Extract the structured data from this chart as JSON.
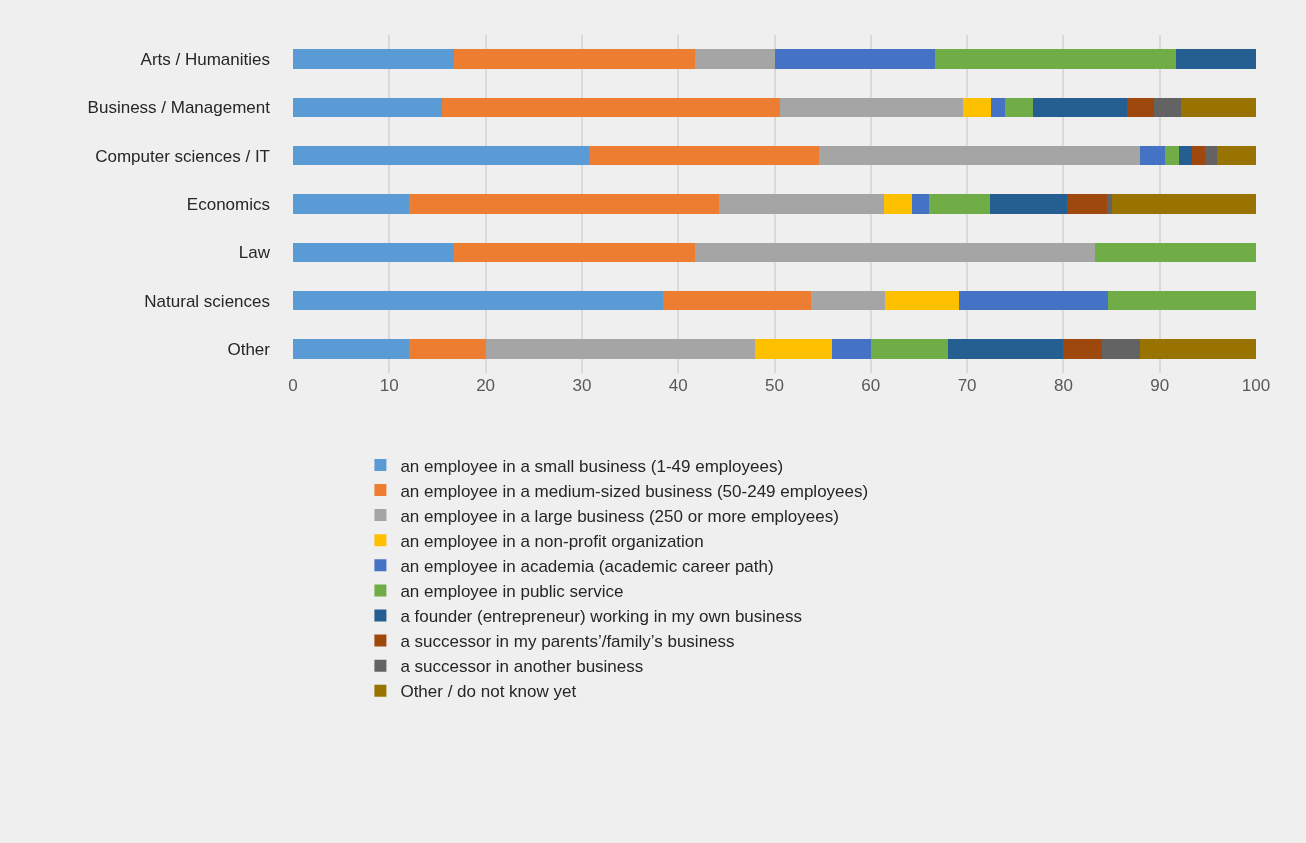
{
  "chart_data": {
    "type": "bar",
    "orientation": "horizontal",
    "stacked": true,
    "grid": "x",
    "legend": "bottom",
    "categories": [
      "Arts / Humanities",
      "Business / Management",
      "Computer sciences / IT",
      "Economics",
      "Law",
      "Natural sciences",
      "Other"
    ],
    "xlim": [
      0,
      100
    ],
    "xticks": [
      0,
      10,
      20,
      30,
      40,
      50,
      60,
      70,
      80,
      90,
      100
    ],
    "series": [
      {
        "name": "an employee in a small business (1-49 employees)",
        "color": "#5b9bd5",
        "values": [
          16.7,
          15.5,
          30.7,
          12.0,
          16.7,
          38.4,
          12
        ]
      },
      {
        "name": "an employee in a medium-sized business (50-249 employees)",
        "color": "#ed7d31",
        "values": [
          25.0,
          35.1,
          23.9,
          32.2,
          25.0,
          15.4,
          8
        ]
      },
      {
        "name": "an employee in a large business (250 or more employees)",
        "color": "#a5a5a5",
        "values": [
          8.3,
          19.0,
          33.4,
          17.2,
          41.6,
          7.7,
          28
        ]
      },
      {
        "name": "an employee in a non-profit organization",
        "color": "#ffc000",
        "values": [
          0,
          2.9,
          0,
          2.9,
          0,
          7.7,
          8
        ]
      },
      {
        "name": "an employee in academia (academic career path)",
        "color": "#4472c4",
        "values": [
          16.7,
          1.4,
          2.6,
          1.7,
          0,
          15.4,
          4
        ]
      },
      {
        "name": "an employee in public service",
        "color": "#70ad47",
        "values": [
          25.0,
          2.9,
          1.4,
          6.4,
          16.7,
          15.4,
          8
        ]
      },
      {
        "name": "a founder (entrepreneur) working in my own business",
        "color": "#255e91",
        "values": [
          8.3,
          9.8,
          1.4,
          8.0,
          0,
          0,
          12
        ]
      },
      {
        "name": "a successor in my parents’/family’s business",
        "color": "#9e480e",
        "values": [
          0,
          2.8,
          1.3,
          4.1,
          0,
          0,
          4
        ]
      },
      {
        "name": "a successor in another business",
        "color": "#636363",
        "values": [
          0,
          2.8,
          1.3,
          0.5,
          0,
          0,
          4
        ]
      },
      {
        "name": "Other / do not know yet",
        "color": "#997300",
        "values": [
          0,
          7.8,
          4.0,
          15.0,
          0,
          0,
          12
        ]
      }
    ]
  }
}
